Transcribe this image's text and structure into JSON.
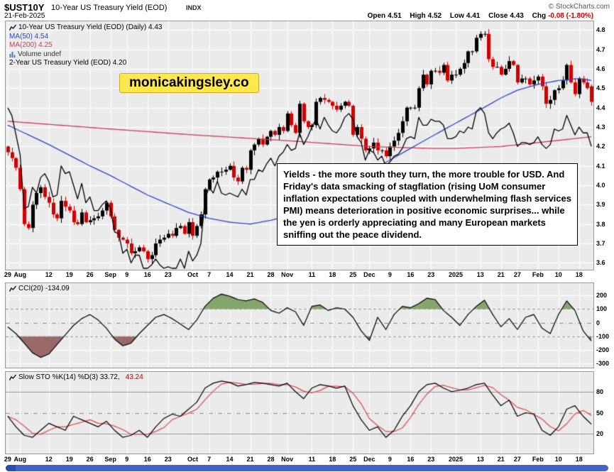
{
  "header": {
    "symbol": "$UST10Y",
    "title": "10-Year US Treasury Yield (EOD)",
    "exchange": "INDX",
    "credit": "© StockCharts.com",
    "date": "21-Feb-2025",
    "quote": {
      "open_label": "Open",
      "open": "4.51",
      "high_label": "High",
      "high": "4.52",
      "low_label": "Low",
      "low": "4.41",
      "close_label": "Close",
      "close": "4.43",
      "chg_label": "Chg",
      "chg": "-0.08 (-1.80%)"
    }
  },
  "legend": {
    "main": "10-Year US Treasury Yield (EOD) (Daily) 4.43",
    "ma50": "MA(50) 4.54",
    "ma200": "MA(200) 4.25",
    "volume": "Volume undef",
    "overlay2y": "2-Year US Treasury Yield (EOD) 4.20"
  },
  "watermark": "monicakingsley.co",
  "annotation": "Yields - the more south they turn, the more trouble for USD. And Friday's data smacking of stagflation (rising UoM consumer inflation expectations coupled with underwhelming flash services PMI) means deterioration in positive economic surprises... while the yen is orderly appreciating and many European markets sniffing out the peace dividend.",
  "cci_legend": "CCI(20) -134.09",
  "sto_legend": {
    "k": "Slow STO %K(14) %D(3) 33.72,",
    "d": "43.24"
  },
  "colors": {
    "candle_up": "#000000",
    "candle_down": "#d40000",
    "ma50": "#2b46cc",
    "ma200": "#cc3b5a",
    "overlay2y": "#000000",
    "cci_line": "#000000",
    "cci_fill_pos": "#84a56b",
    "cci_fill_neg": "#9b6868",
    "sto_k": "#000000",
    "sto_d": "#e04848",
    "plot_bg": "#ebebeb",
    "grid": "#ffffff",
    "chg_neg": "#cc0000",
    "scrollbar": "#4263c9",
    "watermark_bg": "#ffe84d"
  },
  "chart_data": [
    {
      "type": "candlestick",
      "panel": "main",
      "title": "10-Year US Treasury Yield (EOD) Daily, with MA(50), MA(200) and 2-Year US Treasury Yield overlay",
      "ylim": [
        3.6,
        4.8
      ],
      "y_ticks": [
        4.8,
        4.7,
        4.6,
        4.5,
        4.4,
        4.3,
        4.2,
        4.1,
        4.0,
        3.9,
        3.8,
        3.7,
        3.6
      ],
      "x_labels": [
        {
          "i": 0,
          "t": "29"
        },
        {
          "i": 3,
          "t": "Aug"
        },
        {
          "i": 10,
          "t": "12"
        },
        {
          "i": 15,
          "t": "19"
        },
        {
          "i": 20,
          "t": "26"
        },
        {
          "i": 25,
          "t": "Sep"
        },
        {
          "i": 29,
          "t": "9"
        },
        {
          "i": 34,
          "t": "16"
        },
        {
          "i": 39,
          "t": "23"
        },
        {
          "i": 45,
          "t": "Oct"
        },
        {
          "i": 49,
          "t": "7"
        },
        {
          "i": 54,
          "t": "14"
        },
        {
          "i": 59,
          "t": "21"
        },
        {
          "i": 64,
          "t": "28"
        },
        {
          "i": 68,
          "t": "Nov"
        },
        {
          "i": 74,
          "t": "11"
        },
        {
          "i": 79,
          "t": "18"
        },
        {
          "i": 84,
          "t": "25"
        },
        {
          "i": 88,
          "t": "Dec"
        },
        {
          "i": 93,
          "t": "9"
        },
        {
          "i": 98,
          "t": "16"
        },
        {
          "i": 103,
          "t": "23"
        },
        {
          "i": 109,
          "t": "2025"
        },
        {
          "i": 115,
          "t": "13"
        },
        {
          "i": 120,
          "t": "21"
        },
        {
          "i": 124,
          "t": "27"
        },
        {
          "i": 129,
          "t": "Feb"
        },
        {
          "i": 134,
          "t": "10"
        },
        {
          "i": 139,
          "t": "18"
        }
      ],
      "close_10y": [
        4.17,
        4.14,
        4.09,
        3.98,
        3.8,
        3.78,
        3.9,
        3.96,
        3.99,
        3.94,
        3.91,
        3.85,
        3.83,
        3.92,
        3.89,
        3.87,
        3.81,
        3.8,
        3.86,
        3.81,
        3.82,
        3.83,
        3.84,
        3.87,
        3.91,
        3.84,
        3.77,
        3.73,
        3.72,
        3.7,
        3.65,
        3.66,
        3.68,
        3.66,
        3.62,
        3.64,
        3.7,
        3.72,
        3.73,
        3.75,
        3.74,
        3.78,
        3.79,
        3.75,
        3.81,
        3.74,
        3.79,
        3.85,
        3.98,
        4.03,
        4.04,
        4.07,
        4.07,
        4.08,
        4.1,
        4.04,
        4.02,
        4.09,
        4.08,
        4.18,
        4.21,
        4.24,
        4.21,
        4.25,
        4.28,
        4.26,
        4.3,
        4.28,
        4.37,
        4.31,
        4.27,
        4.42,
        4.33,
        4.3,
        4.31,
        4.43,
        4.45,
        4.44,
        4.43,
        4.41,
        4.39,
        4.41,
        4.43,
        4.41,
        4.26,
        4.3,
        4.24,
        4.18,
        4.19,
        4.22,
        4.18,
        4.18,
        4.15,
        4.2,
        4.23,
        4.27,
        4.33,
        4.4,
        4.4,
        4.4,
        4.5,
        4.57,
        4.52,
        4.59,
        4.59,
        4.58,
        4.62,
        4.54,
        4.57,
        4.57,
        4.6,
        4.63,
        4.69,
        4.69,
        4.76,
        4.78,
        4.78,
        4.65,
        4.61,
        4.61,
        4.57,
        4.6,
        4.64,
        4.62,
        4.53,
        4.55,
        4.55,
        4.52,
        4.54,
        4.56,
        4.51,
        4.42,
        4.44,
        4.49,
        4.5,
        4.54,
        4.62,
        4.53,
        4.47,
        4.55,
        4.53,
        4.5,
        4.43
      ],
      "close_2y": [
        4.4,
        4.36,
        4.26,
        4.16,
        3.88,
        3.89,
        3.99,
        3.96,
        4.04,
        4.06,
        4.02,
        3.94,
        3.95,
        4.1,
        4.06,
        4.07,
        4.0,
        3.93,
        4.01,
        3.91,
        3.94,
        3.87,
        3.87,
        3.9,
        3.92,
        3.88,
        3.76,
        3.75,
        3.65,
        3.67,
        3.6,
        3.64,
        3.64,
        3.57,
        3.55,
        3.59,
        3.62,
        3.59,
        3.55,
        3.58,
        3.52,
        3.54,
        3.62,
        3.56,
        3.66,
        3.61,
        3.64,
        3.7,
        3.93,
        3.99,
        3.96,
        4.02,
        3.96,
        3.95,
        3.96,
        3.95,
        3.94,
        3.98,
        3.95,
        4.03,
        4.03,
        4.08,
        4.07,
        4.11,
        4.14,
        4.1,
        4.15,
        4.17,
        4.21,
        4.18,
        4.19,
        4.27,
        4.21,
        4.25,
        4.3,
        4.34,
        4.29,
        4.35,
        4.31,
        4.28,
        4.27,
        4.3,
        4.35,
        4.37,
        4.34,
        4.25,
        4.22,
        4.13,
        4.18,
        4.17,
        4.13,
        4.15,
        4.1,
        4.12,
        4.15,
        4.16,
        4.19,
        4.24,
        4.25,
        4.24,
        4.35,
        4.31,
        4.31,
        4.34,
        4.33,
        4.33,
        4.31,
        4.24,
        4.24,
        4.25,
        4.28,
        4.27,
        4.3,
        4.29,
        4.38,
        4.4,
        4.37,
        4.27,
        4.24,
        4.27,
        4.29,
        4.3,
        4.32,
        4.27,
        4.2,
        4.22,
        4.22,
        4.21,
        4.22,
        4.25,
        4.21,
        4.19,
        4.21,
        4.29,
        4.28,
        4.29,
        4.36,
        4.31,
        4.26,
        4.3,
        4.27,
        4.27,
        4.2
      ],
      "ma50": [
        [
          0,
          4.31
        ],
        [
          10,
          4.21
        ],
        [
          20,
          4.1
        ],
        [
          25,
          4.05
        ],
        [
          34,
          3.95
        ],
        [
          44,
          3.86
        ],
        [
          49,
          3.83
        ],
        [
          54,
          3.81
        ],
        [
          59,
          3.8
        ],
        [
          64,
          3.82
        ],
        [
          68,
          3.84
        ],
        [
          74,
          3.89
        ],
        [
          79,
          3.95
        ],
        [
          84,
          4.01
        ],
        [
          88,
          4.07
        ],
        [
          93,
          4.13
        ],
        [
          98,
          4.19
        ],
        [
          103,
          4.25
        ],
        [
          109,
          4.32
        ],
        [
          115,
          4.39
        ],
        [
          120,
          4.45
        ],
        [
          124,
          4.49
        ],
        [
          129,
          4.52
        ],
        [
          134,
          4.54
        ],
        [
          139,
          4.55
        ],
        [
          142,
          4.54
        ]
      ],
      "ma200": [
        [
          0,
          4.33
        ],
        [
          25,
          4.29
        ],
        [
          45,
          4.26
        ],
        [
          68,
          4.23
        ],
        [
          88,
          4.2
        ],
        [
          103,
          4.19
        ],
        [
          109,
          4.19
        ],
        [
          120,
          4.2
        ],
        [
          129,
          4.22
        ],
        [
          142,
          4.25
        ]
      ],
      "last_candle": {
        "open": 4.51,
        "high": 4.52,
        "low": 4.41,
        "close": 4.43
      }
    },
    {
      "type": "line",
      "panel": "cci",
      "name": "CCI(20)",
      "last": -134.09,
      "ylim": [
        -330,
        290
      ],
      "y_ticks": [
        200,
        100,
        0,
        -100,
        -200,
        -300
      ],
      "thresholds": [
        100,
        -100
      ],
      "points": [
        [
          0,
          -30
        ],
        [
          2,
          -80
        ],
        [
          4,
          -150
        ],
        [
          6,
          -220
        ],
        [
          8,
          -255
        ],
        [
          10,
          -230
        ],
        [
          12,
          -160
        ],
        [
          14,
          -90
        ],
        [
          16,
          -20
        ],
        [
          18,
          30
        ],
        [
          20,
          60
        ],
        [
          22,
          20
        ],
        [
          24,
          -40
        ],
        [
          26,
          -120
        ],
        [
          28,
          -170
        ],
        [
          30,
          -150
        ],
        [
          32,
          -80
        ],
        [
          34,
          -20
        ],
        [
          36,
          40
        ],
        [
          38,
          60
        ],
        [
          40,
          30
        ],
        [
          42,
          -10
        ],
        [
          44,
          -50
        ],
        [
          46,
          20
        ],
        [
          48,
          120
        ],
        [
          50,
          180
        ],
        [
          52,
          210
        ],
        [
          54,
          195
        ],
        [
          56,
          170
        ],
        [
          58,
          160
        ],
        [
          60,
          175
        ],
        [
          62,
          150
        ],
        [
          64,
          90
        ],
        [
          66,
          70
        ],
        [
          68,
          110
        ],
        [
          70,
          80
        ],
        [
          72,
          -20
        ],
        [
          74,
          120
        ],
        [
          76,
          130
        ],
        [
          78,
          90
        ],
        [
          80,
          110
        ],
        [
          82,
          100
        ],
        [
          84,
          40
        ],
        [
          86,
          -60
        ],
        [
          88,
          -130
        ],
        [
          90,
          40
        ],
        [
          92,
          -50
        ],
        [
          94,
          60
        ],
        [
          96,
          120
        ],
        [
          98,
          110
        ],
        [
          100,
          140
        ],
        [
          102,
          180
        ],
        [
          104,
          170
        ],
        [
          106,
          90
        ],
        [
          108,
          40
        ],
        [
          110,
          -20
        ],
        [
          112,
          60
        ],
        [
          114,
          120
        ],
        [
          116,
          165
        ],
        [
          118,
          60
        ],
        [
          120,
          -30
        ],
        [
          122,
          30
        ],
        [
          124,
          -50
        ],
        [
          126,
          40
        ],
        [
          128,
          60
        ],
        [
          130,
          -40
        ],
        [
          132,
          -80
        ],
        [
          134,
          60
        ],
        [
          136,
          160
        ],
        [
          138,
          90
        ],
        [
          140,
          -60
        ],
        [
          142,
          -134.09
        ]
      ]
    },
    {
      "type": "line",
      "panel": "sto",
      "name": "Slow STO %K(14) %D(3)",
      "k_last": 33.72,
      "d_last": 43.24,
      "ylim": [
        0,
        100
      ],
      "y_ticks": [
        80,
        50,
        20
      ],
      "k_points": [
        [
          0,
          45
        ],
        [
          2,
          30
        ],
        [
          4,
          18
        ],
        [
          6,
          15
        ],
        [
          8,
          25
        ],
        [
          10,
          35
        ],
        [
          12,
          30
        ],
        [
          14,
          25
        ],
        [
          16,
          45
        ],
        [
          18,
          40
        ],
        [
          20,
          35
        ],
        [
          22,
          30
        ],
        [
          24,
          38
        ],
        [
          26,
          25
        ],
        [
          28,
          15
        ],
        [
          30,
          18
        ],
        [
          32,
          25
        ],
        [
          34,
          15
        ],
        [
          36,
          30
        ],
        [
          38,
          42
        ],
        [
          40,
          48
        ],
        [
          42,
          45
        ],
        [
          44,
          55
        ],
        [
          46,
          65
        ],
        [
          48,
          85
        ],
        [
          50,
          92
        ],
        [
          52,
          95
        ],
        [
          54,
          93
        ],
        [
          56,
          88
        ],
        [
          58,
          90
        ],
        [
          60,
          93
        ],
        [
          62,
          92
        ],
        [
          64,
          90
        ],
        [
          66,
          88
        ],
        [
          68,
          92
        ],
        [
          70,
          80
        ],
        [
          72,
          70
        ],
        [
          74,
          85
        ],
        [
          76,
          90
        ],
        [
          78,
          88
        ],
        [
          80,
          85
        ],
        [
          82,
          88
        ],
        [
          84,
          60
        ],
        [
          86,
          40
        ],
        [
          88,
          25
        ],
        [
          90,
          30
        ],
        [
          92,
          15
        ],
        [
          94,
          25
        ],
        [
          96,
          45
        ],
        [
          98,
          60
        ],
        [
          100,
          80
        ],
        [
          102,
          90
        ],
        [
          104,
          92
        ],
        [
          106,
          85
        ],
        [
          108,
          80
        ],
        [
          110,
          82
        ],
        [
          112,
          85
        ],
        [
          114,
          90
        ],
        [
          116,
          92
        ],
        [
          118,
          75
        ],
        [
          120,
          60
        ],
        [
          122,
          68
        ],
        [
          124,
          45
        ],
        [
          126,
          50
        ],
        [
          128,
          48
        ],
        [
          130,
          25
        ],
        [
          132,
          18
        ],
        [
          134,
          30
        ],
        [
          136,
          55
        ],
        [
          138,
          60
        ],
        [
          140,
          45
        ],
        [
          142,
          33.72
        ]
      ]
    }
  ]
}
